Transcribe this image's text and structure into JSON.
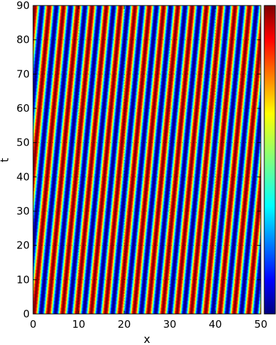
{
  "chart_data": {
    "type": "heatmap",
    "title": "",
    "xlabel": "x",
    "ylabel": "t",
    "xlim": [
      0,
      50
    ],
    "ylim": [
      0,
      90
    ],
    "x_ticks": [
      "0",
      "10",
      "20",
      "30",
      "40",
      "50"
    ],
    "y_ticks": [
      "0",
      "10",
      "20",
      "30",
      "40",
      "50",
      "60",
      "70",
      "80",
      "90"
    ],
    "grid": true,
    "colormap": "jet",
    "colorbar": {
      "ticks": []
    },
    "field": {
      "description": "traveling wave: u(x,t) = sin(k*(x - c*t))",
      "wavelength": 3.14,
      "stripes_across_x": 16,
      "shift_of_pattern_per_unit_t": 0.0722
    }
  },
  "colors": {
    "jet": [
      "#00007f",
      "#0000ff",
      "#007fff",
      "#00ffff",
      "#7fff7f",
      "#ffff00",
      "#ff7f00",
      "#ff0000",
      "#7f0000"
    ]
  }
}
